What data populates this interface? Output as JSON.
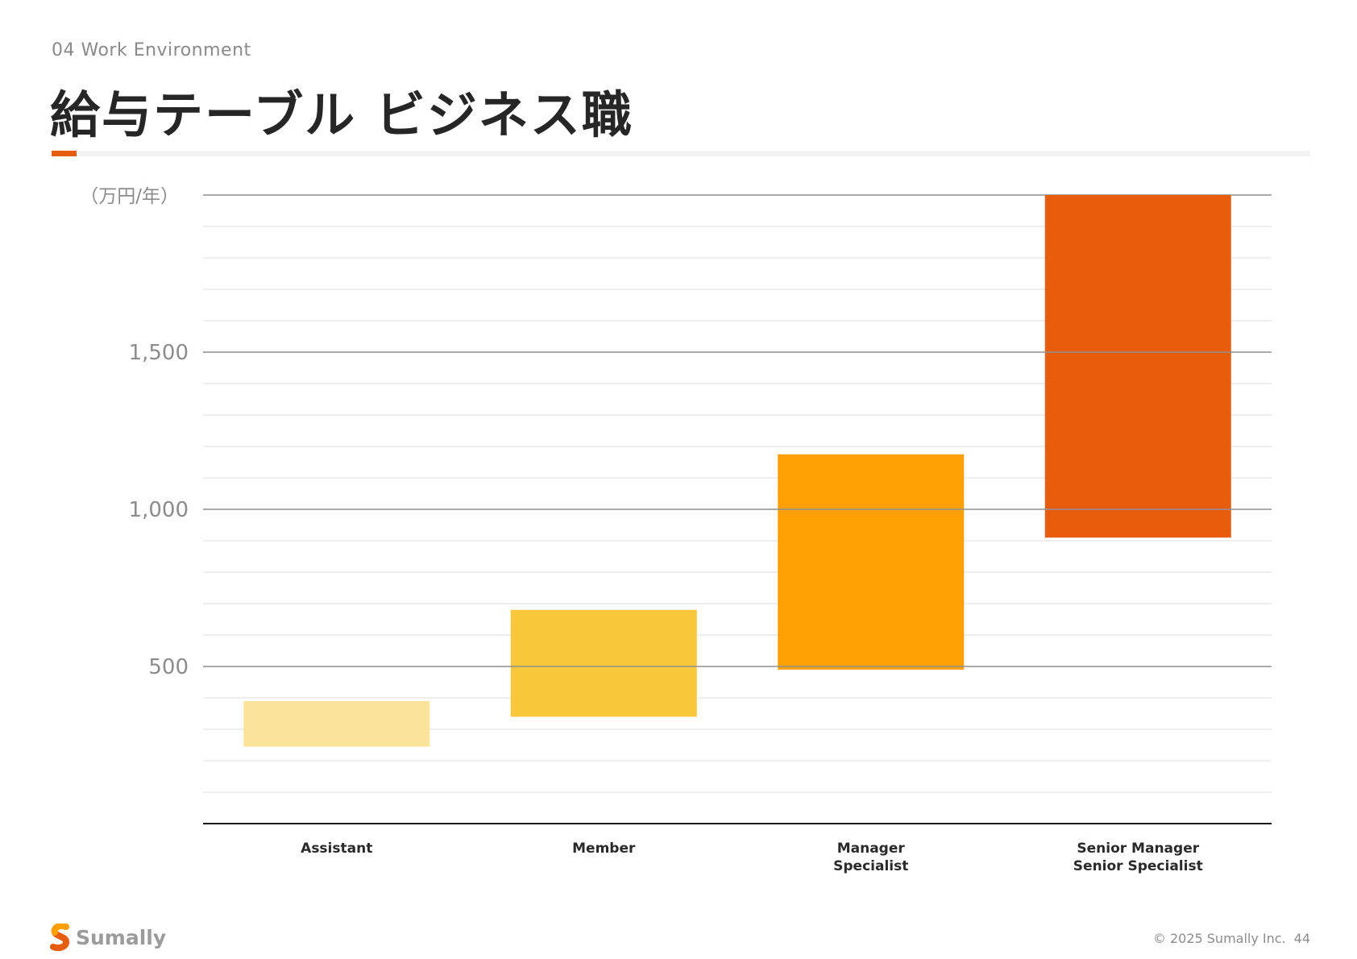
{
  "header": {
    "section_label": "04 Work Environment",
    "title": "給与テーブル ビジネス職",
    "accent_color": "#e85d0c"
  },
  "footer": {
    "brand": "Sumally",
    "copyright": "© 2025 Sumally Inc.",
    "page_number": "44"
  },
  "chart_data": {
    "type": "bar",
    "subtype": "floating-range",
    "unit_label": "（万円/年）",
    "categories": [
      [
        "Assistant"
      ],
      [
        "Member"
      ],
      [
        "Manager",
        "Specialist"
      ],
      [
        "Senior Manager",
        "Senior Specialist"
      ]
    ],
    "ranges": [
      {
        "low": 245,
        "high": 390,
        "color": "#fbe39a"
      },
      {
        "low": 340,
        "high": 680,
        "color": "#f9c73a"
      },
      {
        "low": 490,
        "high": 1175,
        "color": "#fe9f04"
      },
      {
        "low": 910,
        "high": 2000,
        "color": "#e85d0c"
      }
    ],
    "yticks": [
      500,
      1000,
      1500
    ],
    "ytick_labels": [
      "500",
      "1,000",
      "1,500"
    ],
    "ylim": [
      0,
      2000
    ],
    "minor_grid_step": 100,
    "grid": true
  }
}
